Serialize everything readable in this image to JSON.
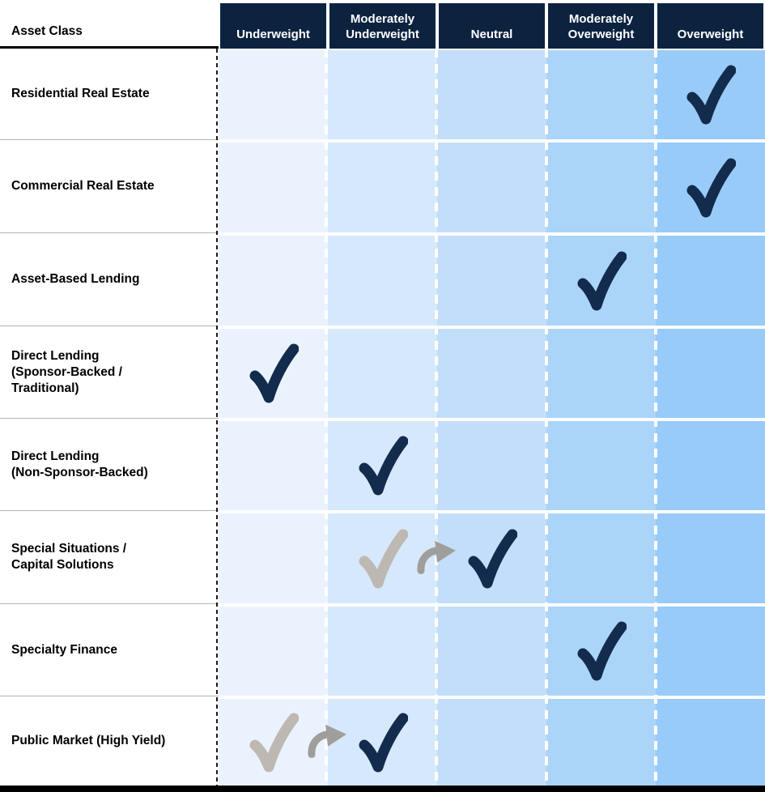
{
  "chart_data": {
    "type": "table",
    "corner_header": "Asset Class",
    "columns": [
      "Underweight",
      "Moderately Underweight",
      "Neutral",
      "Moderately Overweight",
      "Overweight"
    ],
    "column_colors": [
      "#eaf3fd",
      "#d6e8fb",
      "#c3defa",
      "#abd4f9",
      "#98cbf8"
    ],
    "rows": [
      {
        "label": "Residential Real Estate",
        "label_lines": [
          "Residential Real Estate"
        ],
        "rating": "Overweight"
      },
      {
        "label": "Commercial Real Estate",
        "label_lines": [
          "Commercial Real Estate"
        ],
        "rating": "Overweight"
      },
      {
        "label": "Asset-Based Lending",
        "label_lines": [
          "Asset-Based Lending"
        ],
        "rating": "Moderately Overweight"
      },
      {
        "label": "Direct Lending (Sponsor-Backed / Traditional)",
        "label_lines": [
          "Direct Lending",
          "(Sponsor-Backed /",
          "Traditional)"
        ],
        "rating": "Underweight"
      },
      {
        "label": "Direct Lending (Non-Sponsor-Backed)",
        "label_lines": [
          "Direct Lending",
          "(Non-Sponsor-Backed)"
        ],
        "rating": "Moderately Underweight"
      },
      {
        "label": "Special Situations / Capital Solutions",
        "label_lines": [
          "Special Situations /",
          "Capital Solutions"
        ],
        "rating": "Neutral",
        "previous_rating": "Moderately Underweight"
      },
      {
        "label": "Specialty Finance",
        "label_lines": [
          "Specialty Finance"
        ],
        "rating": "Moderately Overweight"
      },
      {
        "label": "Public Market (High Yield)",
        "label_lines": [
          "Public Market (High Yield)"
        ],
        "rating": "Moderately Underweight",
        "previous_rating": "Underweight"
      }
    ],
    "colors": {
      "header_bg": "#0c2340",
      "header_text": "#ffffff",
      "check": "#132b4c",
      "previous_check": "#bdb8b1",
      "arrow": "#a09e9c",
      "row_divider": "#b4b4b4"
    }
  }
}
